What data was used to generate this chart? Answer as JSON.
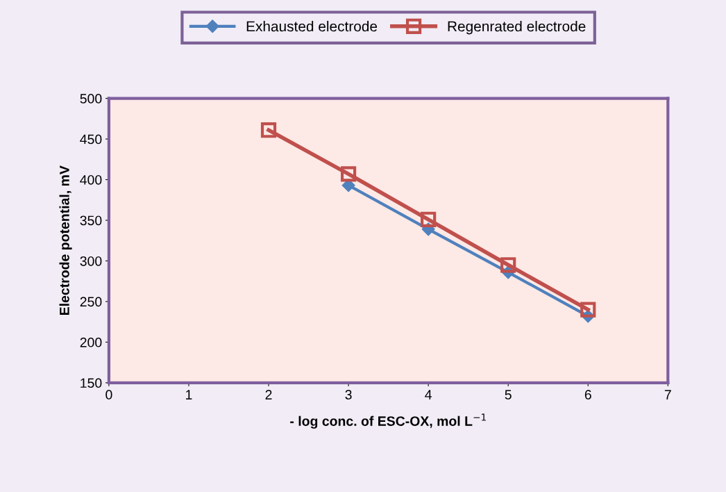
{
  "chart_data": {
    "type": "line",
    "xlabel": "- log conc. of ESC-OX, mol L$^{−1}$",
    "ylabel": "Electrode potential, mV",
    "series": [
      {
        "name": "Exhausted electrode",
        "color": "#4f81bd",
        "marker": "diamond",
        "x": [
          3,
          4,
          5,
          6
        ],
        "values": [
          393,
          339,
          286,
          232
        ]
      },
      {
        "name": "Regenrated electrode",
        "color": "#c0504d",
        "marker": "square",
        "x": [
          2,
          3,
          4,
          5,
          6
        ],
        "values": [
          461,
          407,
          351,
          295,
          240
        ]
      }
    ],
    "xlim": [
      0,
      7
    ],
    "xticks": [
      0,
      1,
      2,
      3,
      4,
      5,
      6,
      7
    ],
    "ylim": [
      150,
      500
    ],
    "yticks": [
      150,
      200,
      250,
      300,
      350,
      400,
      450,
      500
    ],
    "grid": false,
    "legend": "top",
    "line_style": "solid"
  }
}
